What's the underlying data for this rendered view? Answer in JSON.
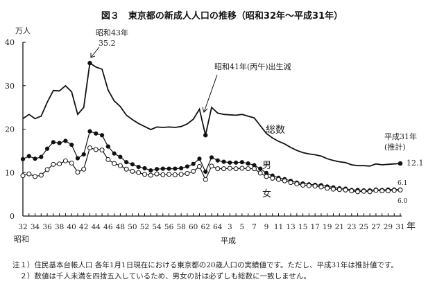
{
  "chart_data": {
    "type": "line",
    "title": "図３　東京都の新成人人口の推移（昭和32年～平成31年）",
    "ylabel": "万人",
    "ylim": [
      0,
      40
    ],
    "yticks": [
      "0",
      "10",
      "20",
      "30",
      "40"
    ],
    "xunit": "年",
    "era_labels": {
      "showa": "昭和",
      "heisei": "平成"
    },
    "x": [
      "S32",
      "S33",
      "S34",
      "S35",
      "S36",
      "S37",
      "S38",
      "S39",
      "S40",
      "S41",
      "S42",
      "S43",
      "S44",
      "S45",
      "S46",
      "S47",
      "S48",
      "S49",
      "S50",
      "S51",
      "S52",
      "S53",
      "S54",
      "S55",
      "S56",
      "S57",
      "S58",
      "S59",
      "S60",
      "S61",
      "S62",
      "S63",
      "S64/H1",
      "H2",
      "H3",
      "H4",
      "H5",
      "H6",
      "H7",
      "H8",
      "H9",
      "H10",
      "H11",
      "H12",
      "H13",
      "H14",
      "H15",
      "H16",
      "H17",
      "H18",
      "H19",
      "H20",
      "H21",
      "H22",
      "H23",
      "H24",
      "H25",
      "H26",
      "H27",
      "H28",
      "H29",
      "H30",
      "H31"
    ],
    "xtick_labels": [
      "32",
      "34",
      "36",
      "38",
      "40",
      "42",
      "44",
      "46",
      "48",
      "50",
      "52",
      "54",
      "56",
      "58",
      "60",
      "62",
      "64",
      "3",
      "5",
      "7",
      "9",
      "11",
      "13",
      "15",
      "17",
      "19",
      "21",
      "23",
      "25",
      "27",
      "29",
      "31"
    ],
    "grid": false,
    "series": [
      {
        "name": "総数",
        "marker": "none",
        "values": [
          22.4,
          23.4,
          22.4,
          23.0,
          26.2,
          28.9,
          28.8,
          30.0,
          28.6,
          23.4,
          25.0,
          35.2,
          34.3,
          33.8,
          29.0,
          26.5,
          25.2,
          23.2,
          22.2,
          21.3,
          20.6,
          19.9,
          20.5,
          20.4,
          20.5,
          20.4,
          20.6,
          21.2,
          22.3,
          24.6,
          18.6,
          25.0,
          23.7,
          23.4,
          23.3,
          23.2,
          23.4,
          23.0,
          22.6,
          20.8,
          19.0,
          18.0,
          17.2,
          16.6,
          15.8,
          15.1,
          14.6,
          14.3,
          14.1,
          13.8,
          13.2,
          12.8,
          12.5,
          12.3,
          11.8,
          11.6,
          11.6,
          11.5,
          12.0,
          11.8,
          11.9,
          12.0,
          12.1
        ]
      },
      {
        "name": "男",
        "marker": "filled-circle",
        "values": [
          13.1,
          13.8,
          13.2,
          13.6,
          15.5,
          17.0,
          16.8,
          17.3,
          16.4,
          13.3,
          14.2,
          19.5,
          19.0,
          18.6,
          16.0,
          14.4,
          13.6,
          12.4,
          11.9,
          11.3,
          11.0,
          10.5,
          10.8,
          10.9,
          10.9,
          10.9,
          11.0,
          11.4,
          12.0,
          13.2,
          10.2,
          13.5,
          12.8,
          12.5,
          12.3,
          12.3,
          12.4,
          12.1,
          11.7,
          10.9,
          9.9,
          9.3,
          8.8,
          8.5,
          8.1,
          7.7,
          7.5,
          7.3,
          7.2,
          7.1,
          6.8,
          6.6,
          6.4,
          6.3,
          6.0,
          6.0,
          5.9,
          5.9,
          6.1,
          6.0,
          6.1,
          6.1,
          6.1
        ]
      },
      {
        "name": "女",
        "marker": "open-circle",
        "values": [
          9.3,
          9.7,
          9.1,
          9.4,
          10.7,
          11.9,
          12.0,
          12.7,
          12.2,
          10.1,
          10.8,
          15.7,
          15.3,
          15.2,
          13.0,
          12.1,
          11.6,
          10.8,
          10.3,
          10.0,
          9.6,
          9.4,
          9.7,
          9.5,
          9.6,
          9.5,
          9.6,
          9.8,
          10.3,
          11.4,
          8.4,
          11.5,
          10.9,
          10.9,
          11.0,
          10.9,
          11.0,
          10.9,
          10.9,
          9.9,
          9.1,
          8.7,
          8.4,
          8.1,
          7.7,
          7.4,
          7.1,
          7.0,
          6.9,
          6.7,
          6.4,
          6.2,
          6.1,
          6.0,
          5.8,
          5.6,
          5.7,
          5.6,
          5.9,
          5.8,
          5.8,
          5.9,
          6.0
        ]
      }
    ],
    "annotations": {
      "peak_year": "昭和43年",
      "peak_value": "35.2",
      "hinoeuma": "昭和41年(丙午)出生減",
      "latest_year": "平成31年",
      "latest_note": "(推計)",
      "latest_total": "12.1",
      "latest_male": "6.1",
      "latest_female": "6.0"
    }
  },
  "notes": [
    "注１）住民基本台帳人口 各年1月1日現在における東京都の20歳人口の実績値です。ただし、平成31年は推計値です。",
    "　２）数値は千人未満を四捨五入しているため、男女の計は必ずしも総数に一致しません。"
  ]
}
